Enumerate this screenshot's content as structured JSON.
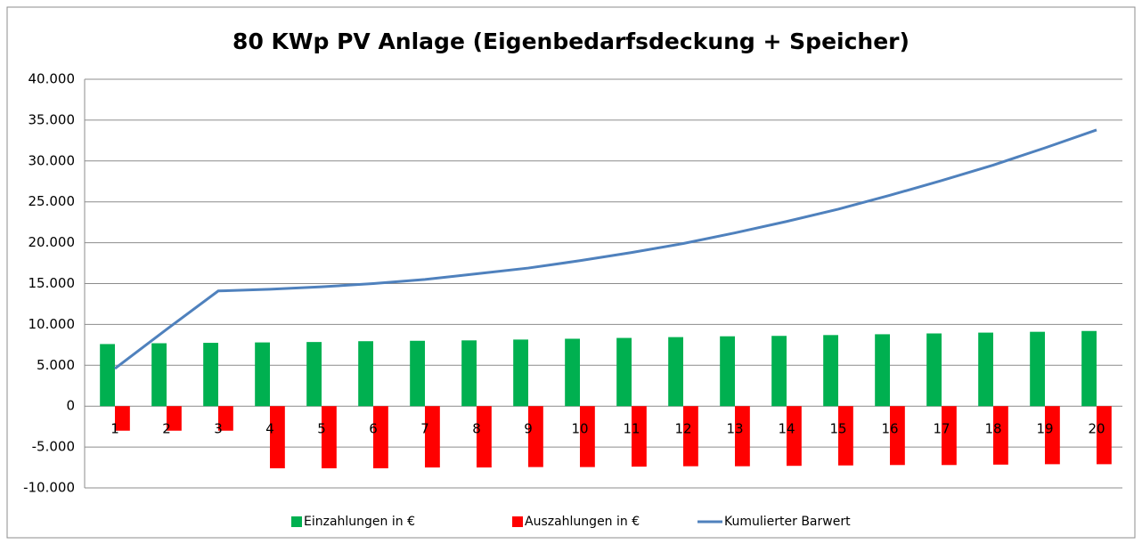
{
  "chart_data": {
    "type": "bar_line",
    "title": "80 KWp PV Anlage (Eigenbedarfsdeckung + Speicher)",
    "categories": [
      1,
      2,
      3,
      4,
      5,
      6,
      7,
      8,
      9,
      10,
      11,
      12,
      13,
      14,
      15,
      16,
      17,
      18,
      19,
      20
    ],
    "series": [
      {
        "name": "Einzahlungen in €",
        "color": "#00b050",
        "kind": "bar",
        "values": [
          7600,
          7700,
          7750,
          7800,
          7850,
          7950,
          8000,
          8050,
          8150,
          8250,
          8350,
          8450,
          8550,
          8600,
          8700,
          8800,
          8900,
          9000,
          9100,
          9200
        ]
      },
      {
        "name": "Auszahlungen in €",
        "color": "#ff0000",
        "kind": "bar",
        "values": [
          -3000,
          -3000,
          -3000,
          -7600,
          -7600,
          -7600,
          -7500,
          -7500,
          -7450,
          -7450,
          -7400,
          -7350,
          -7350,
          -7300,
          -7250,
          -7200,
          -7200,
          -7150,
          -7100,
          -7100
        ]
      },
      {
        "name": "Kumulierter Barwert",
        "color": "#4f81bd",
        "kind": "line",
        "values": [
          4600,
          9400,
          14100,
          14300,
          14600,
          15000,
          15500,
          16200,
          16900,
          17800,
          18800,
          19900,
          21200,
          22600,
          24100,
          25800,
          27600,
          29500,
          31600,
          33800
        ]
      }
    ],
    "ylim": [
      -10000,
      40000
    ],
    "yticks": [
      {
        "value": -10000,
        "label": "-10.000"
      },
      {
        "value": -5000,
        "label": "-5.000"
      },
      0,
      {
        "value": 5000,
        "label": "5.000"
      },
      {
        "value": 10000,
        "label": "10.000"
      },
      {
        "value": 15000,
        "label": "15.000"
      },
      {
        "value": 20000,
        "label": "20.000"
      },
      {
        "value": 25000,
        "label": "25.000"
      },
      {
        "value": 30000,
        "label": "30.000"
      },
      {
        "value": 35000,
        "label": "35.000"
      },
      {
        "value": 40000,
        "label": "40.000"
      }
    ],
    "grid": true,
    "legend": "bottom"
  }
}
